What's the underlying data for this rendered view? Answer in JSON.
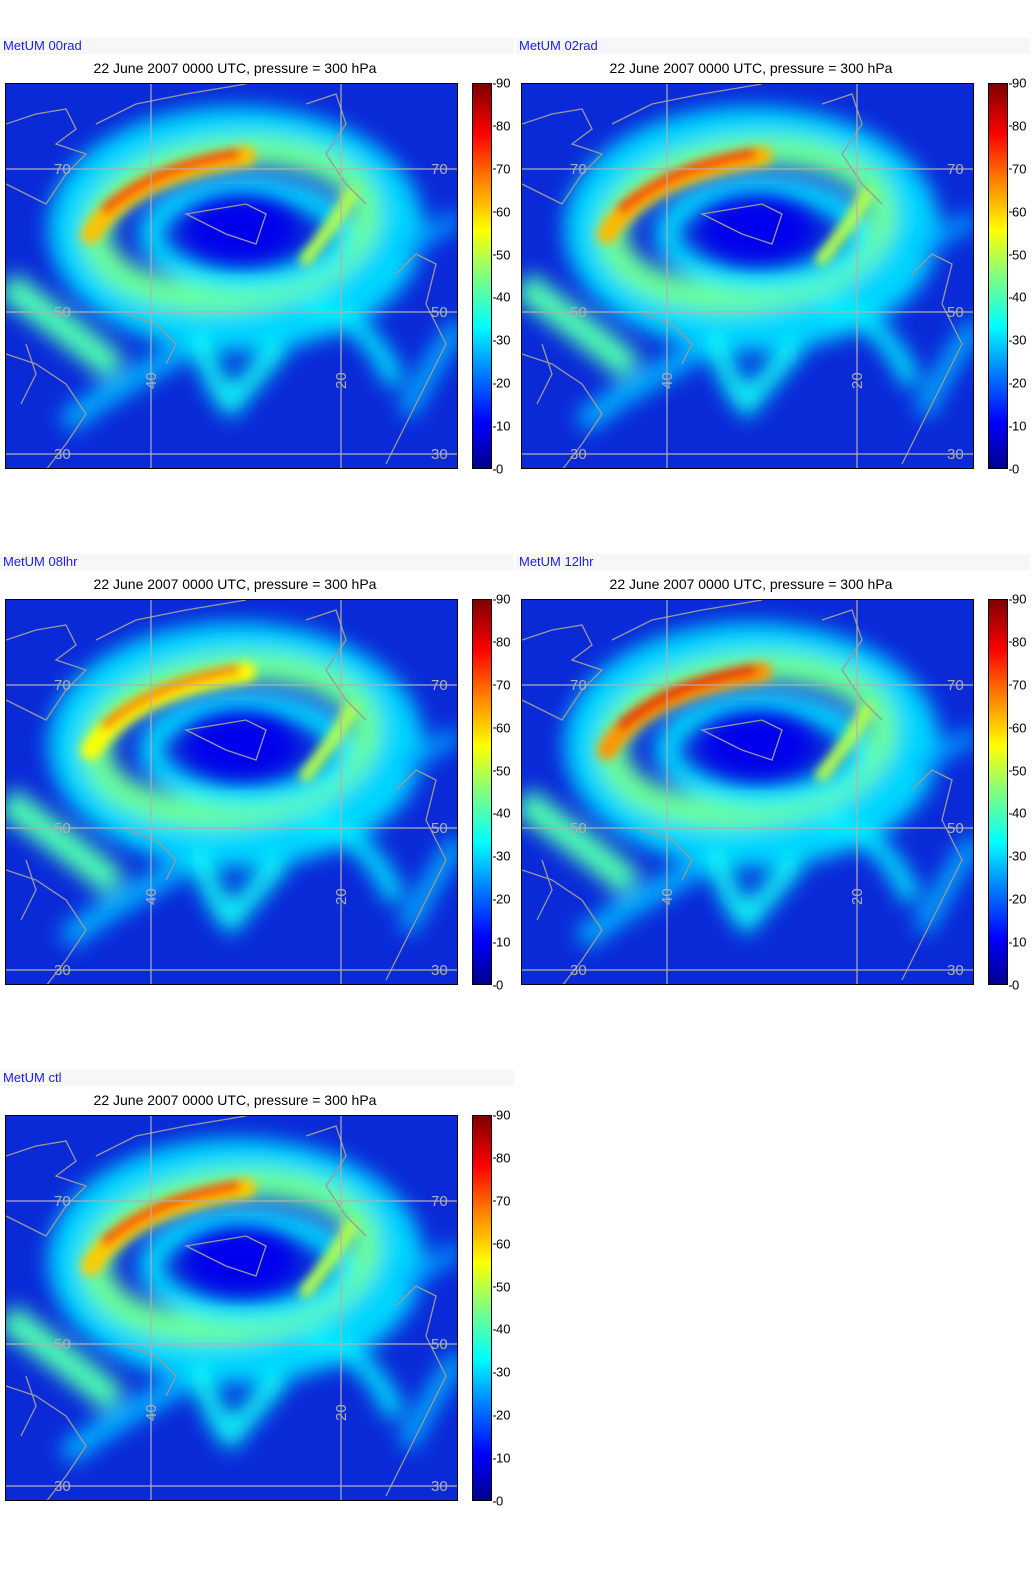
{
  "figure": {
    "colorbar": {
      "ticks": [
        "0",
        "10",
        "20",
        "30",
        "40",
        "50",
        "60",
        "70",
        "80",
        "90"
      ],
      "min": 0,
      "max": 90,
      "colormap": "jet"
    },
    "grid_labels": {
      "lat": [
        "70",
        "50",
        "30"
      ],
      "lon": [
        "40",
        "20"
      ]
    },
    "colors": {
      "model_label": "#1a1aff",
      "grid": "#b0b0b0",
      "coast": "#9a9a9a",
      "background_field": "#0a2ad8"
    }
  },
  "panels": [
    {
      "model": "MetUM 00rad",
      "title": "22 June 2007 0000 UTC, pressure = 300 hPa"
    },
    {
      "model": "MetUM 02rad",
      "title": "22 June 2007 0000 UTC, pressure = 300 hPa"
    },
    {
      "model": "MetUM 08lhr",
      "title": "22 June 2007 0000 UTC, pressure = 300 hPa"
    },
    {
      "model": "MetUM 12lhr",
      "title": "22 June 2007 0000 UTC, pressure = 300 hPa"
    },
    {
      "model": "MetUM ctl",
      "title": "22 June 2007 0000 UTC, pressure = 300 hPa"
    }
  ],
  "chart_data": [
    {
      "type": "heatmap",
      "title": "22 June 2007 0000 UTC, pressure = 300 hPa",
      "series_label": "MetUM 00rad",
      "colorbar_range": [
        0,
        90
      ],
      "jet_max": 75,
      "grid": true
    },
    {
      "type": "heatmap",
      "title": "22 June 2007 0000 UTC, pressure = 300 hPa",
      "series_label": "MetUM 02rad",
      "colorbar_range": [
        0,
        90
      ],
      "jet_max": 76,
      "grid": true
    },
    {
      "type": "heatmap",
      "title": "22 June 2007 0000 UTC, pressure = 300 hPa",
      "series_label": "MetUM 08lhr",
      "colorbar_range": [
        0,
        90
      ],
      "jet_max": 68,
      "grid": true
    },
    {
      "type": "heatmap",
      "title": "22 June 2007 0000 UTC, pressure = 300 hPa",
      "series_label": "MetUM 12lhr",
      "colorbar_range": [
        0,
        90
      ],
      "jet_max": 80,
      "grid": true
    },
    {
      "type": "heatmap",
      "title": "22 June 2007 0000 UTC, pressure = 300 hPa",
      "series_label": "MetUM ctl",
      "colorbar_range": [
        0,
        90
      ],
      "jet_max": 74,
      "grid": true
    }
  ]
}
